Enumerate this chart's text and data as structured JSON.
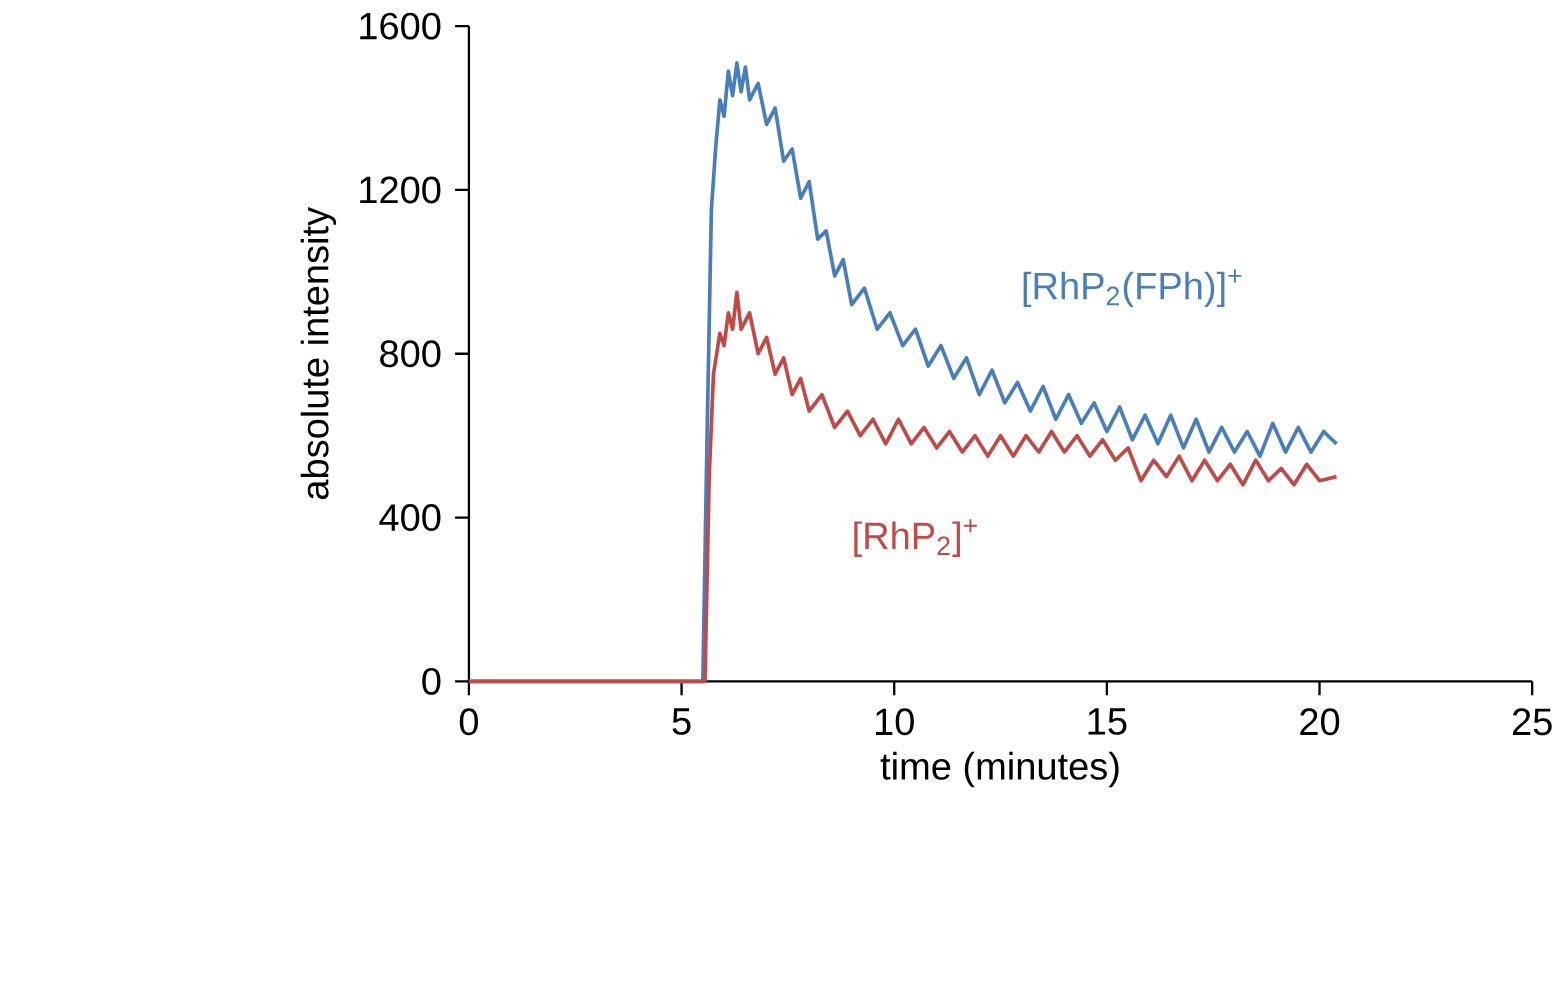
{
  "chart_data": {
    "type": "line",
    "xlabel": "time (minutes)",
    "ylabel": "absolute intensity",
    "xlim": [
      0,
      25
    ],
    "xticks": [
      0,
      5,
      10,
      15,
      20,
      25
    ],
    "ylim": [
      0,
      1600
    ],
    "yticks": [
      0,
      400,
      800,
      1200,
      1600
    ],
    "grid": false,
    "legend": false,
    "marker": "none",
    "line_style": "solid",
    "series": [
      {
        "name": "[RhP$_{2}$(FPh)]$^{+}$",
        "color": "#4a7ebb",
        "x": [
          0,
          5.5,
          5.6,
          5.7,
          5.8,
          5.9,
          6.0,
          6.1,
          6.2,
          6.3,
          6.4,
          6.5,
          6.6,
          6.8,
          7.0,
          7.2,
          7.4,
          7.6,
          7.8,
          8.0,
          8.2,
          8.4,
          8.6,
          8.8,
          9.0,
          9.3,
          9.6,
          9.9,
          10.2,
          10.5,
          10.8,
          11.1,
          11.4,
          11.7,
          12.0,
          12.3,
          12.6,
          12.9,
          13.2,
          13.5,
          13.8,
          14.1,
          14.4,
          14.7,
          15.0,
          15.3,
          15.6,
          15.9,
          16.2,
          16.5,
          16.8,
          17.1,
          17.4,
          17.7,
          18.0,
          18.3,
          18.6,
          18.9,
          19.2,
          19.5,
          19.8,
          20.1,
          20.4
        ],
        "values": [
          0,
          0,
          600,
          1150,
          1300,
          1420,
          1380,
          1490,
          1430,
          1510,
          1440,
          1500,
          1420,
          1460,
          1360,
          1400,
          1270,
          1300,
          1180,
          1220,
          1080,
          1100,
          990,
          1030,
          920,
          960,
          860,
          900,
          820,
          860,
          770,
          820,
          740,
          790,
          700,
          760,
          680,
          730,
          660,
          720,
          640,
          700,
          630,
          680,
          610,
          670,
          590,
          650,
          580,
          650,
          570,
          640,
          560,
          620,
          560,
          610,
          550,
          630,
          560,
          620,
          560,
          610,
          580
        ]
      },
      {
        "name": "[RhP$_{2}$]$^{+}$",
        "color": "#be4b48",
        "x": [
          0,
          5.55,
          5.65,
          5.75,
          5.9,
          6.0,
          6.1,
          6.2,
          6.3,
          6.4,
          6.6,
          6.8,
          7.0,
          7.2,
          7.4,
          7.6,
          7.8,
          8.0,
          8.3,
          8.6,
          8.9,
          9.2,
          9.5,
          9.8,
          10.1,
          10.4,
          10.7,
          11.0,
          11.3,
          11.6,
          11.9,
          12.2,
          12.5,
          12.8,
          13.1,
          13.4,
          13.7,
          14.0,
          14.3,
          14.6,
          14.9,
          15.2,
          15.5,
          15.8,
          16.1,
          16.4,
          16.7,
          17.0,
          17.3,
          17.6,
          17.9,
          18.2,
          18.5,
          18.8,
          19.1,
          19.4,
          19.7,
          20.0,
          20.4
        ],
        "values": [
          0,
          0,
          500,
          750,
          850,
          820,
          900,
          860,
          950,
          860,
          900,
          800,
          840,
          750,
          790,
          700,
          740,
          660,
          700,
          620,
          660,
          600,
          640,
          580,
          640,
          580,
          620,
          570,
          610,
          560,
          600,
          550,
          600,
          550,
          600,
          560,
          610,
          560,
          600,
          550,
          590,
          540,
          570,
          490,
          540,
          500,
          550,
          490,
          540,
          490,
          530,
          480,
          540,
          490,
          520,
          480,
          530,
          490,
          500
        ]
      }
    ]
  }
}
